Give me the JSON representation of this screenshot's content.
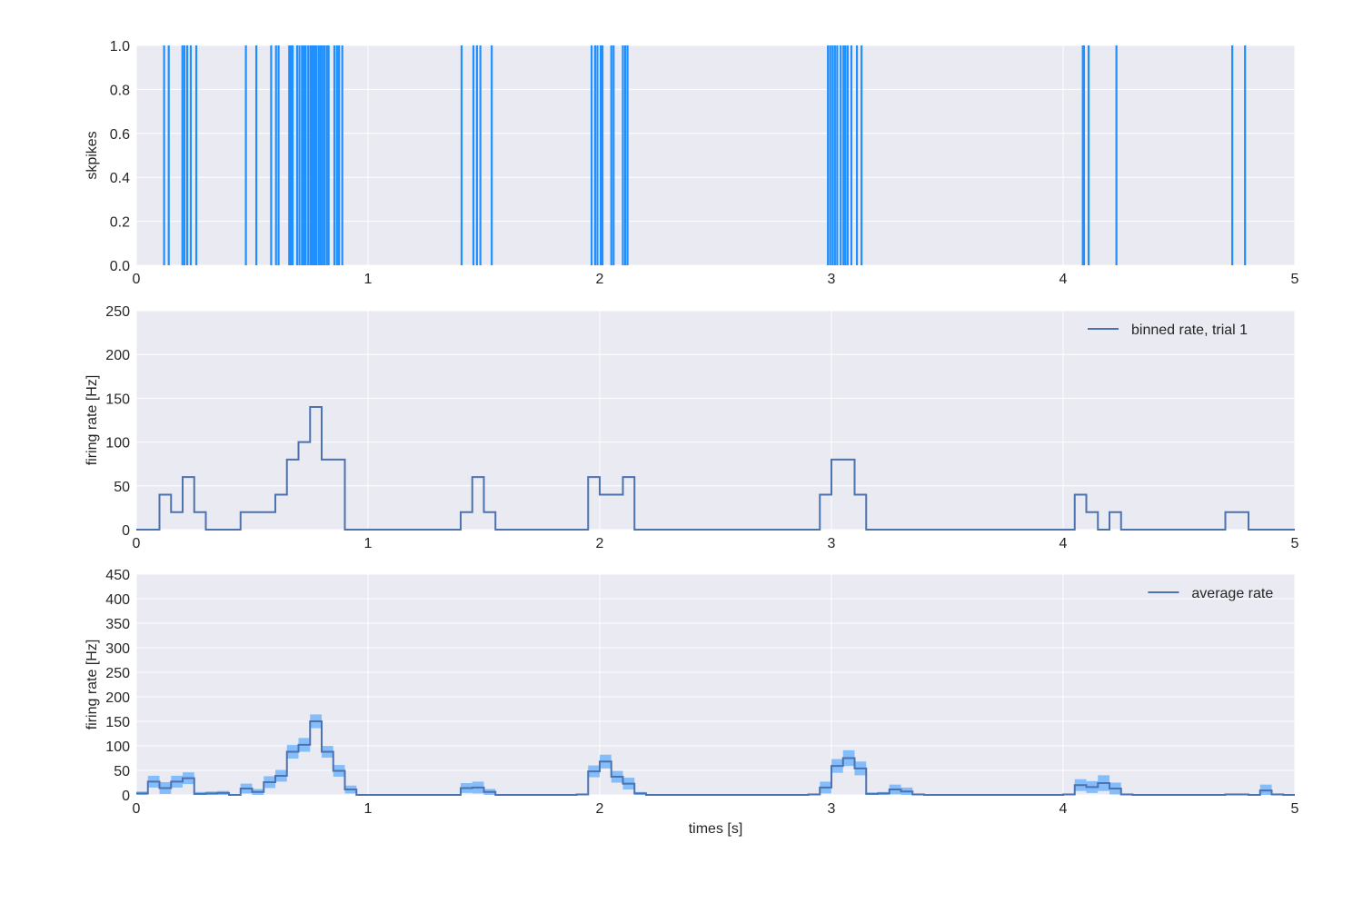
{
  "chart_data": [
    {
      "type": "raster",
      "ylabel": "skpikes",
      "xlim": [
        0,
        5
      ],
      "ylim": [
        0,
        1
      ],
      "xticks": [
        "0",
        "1",
        "2",
        "3",
        "4",
        "5"
      ],
      "yticks": [
        "0.0",
        "0.2",
        "0.4",
        "0.6",
        "0.8",
        "1.0"
      ],
      "grid": true,
      "color": "#1e90ff",
      "spike_times": [
        0.12,
        0.14,
        0.199,
        0.208,
        0.22,
        0.235,
        0.259,
        0.473,
        0.518,
        0.582,
        0.603,
        0.614,
        0.66,
        0.667,
        0.675,
        0.694,
        0.704,
        0.715,
        0.723,
        0.731,
        0.742,
        0.752,
        0.758,
        0.764,
        0.77,
        0.777,
        0.787,
        0.795,
        0.803,
        0.812,
        0.822,
        0.83,
        0.855,
        0.866,
        0.875,
        0.889,
        1.404,
        1.455,
        1.47,
        1.485,
        1.534,
        1.965,
        1.98,
        1.99,
        2.004,
        2.012,
        2.05,
        2.06,
        2.1,
        2.11,
        2.12,
        2.985,
        2.995,
        3.005,
        3.015,
        3.025,
        3.04,
        3.052,
        3.06,
        3.07,
        3.086,
        3.11,
        3.13,
        4.085,
        4.09,
        4.11,
        4.23,
        4.73,
        4.785
      ]
    },
    {
      "type": "step",
      "ylabel": "firing rate [Hz]",
      "xlim": [
        0,
        5
      ],
      "ylim": [
        0,
        250
      ],
      "xticks": [
        "0",
        "1",
        "2",
        "3",
        "4",
        "5"
      ],
      "yticks": [
        "0",
        "50",
        "100",
        "150",
        "200",
        "250"
      ],
      "grid": true,
      "legend": "top-right",
      "color": "#4c72b0",
      "series": [
        {
          "name": "binned rate, trial 1",
          "bin_width": 0.05,
          "values": [
            0,
            0,
            40,
            20,
            60,
            20,
            0,
            0,
            0,
            20,
            20,
            20,
            40,
            80,
            100,
            140,
            80,
            80,
            0,
            0,
            0,
            0,
            0,
            0,
            0,
            0,
            0,
            0,
            20,
            60,
            20,
            0,
            0,
            0,
            0,
            0,
            0,
            0,
            0,
            60,
            40,
            40,
            60,
            0,
            0,
            0,
            0,
            0,
            0,
            0,
            0,
            0,
            0,
            0,
            0,
            0,
            0,
            0,
            0,
            40,
            80,
            80,
            40,
            0,
            0,
            0,
            0,
            0,
            0,
            0,
            0,
            0,
            0,
            0,
            0,
            0,
            0,
            0,
            0,
            0,
            0,
            40,
            20,
            0,
            20,
            0,
            0,
            0,
            0,
            0,
            0,
            0,
            0,
            0,
            20,
            20,
            0,
            0,
            0,
            0
          ]
        }
      ]
    },
    {
      "type": "step",
      "xlabel": "times [s]",
      "ylabel": "firing rate [Hz]",
      "xlim": [
        0,
        5
      ],
      "ylim": [
        0,
        450
      ],
      "xticks": [
        "0",
        "1",
        "2",
        "3",
        "4",
        "5"
      ],
      "yticks": [
        "0",
        "50",
        "100",
        "150",
        "200",
        "250",
        "300",
        "350",
        "400",
        "450"
      ],
      "grid": true,
      "legend": "top-right",
      "color": "#4c72b0",
      "band_color": "#1e90ff",
      "series": [
        {
          "name": "average rate",
          "bin_width": 0.05,
          "values": [
            3,
            27,
            14,
            27,
            34,
            2,
            3,
            4,
            0,
            13,
            6,
            26,
            39,
            88,
            102,
            150,
            88,
            49,
            11,
            0,
            0,
            0,
            0,
            0,
            0,
            0,
            0,
            0,
            14,
            15,
            6,
            0,
            0,
            0,
            0,
            0,
            0,
            0,
            1,
            48,
            68,
            37,
            23,
            3,
            0,
            0,
            0,
            0,
            0,
            0,
            0,
            0,
            0,
            0,
            0,
            0,
            0,
            0,
            1,
            15,
            59,
            75,
            54,
            2,
            3,
            11,
            7,
            1,
            0,
            0,
            0,
            0,
            0,
            0,
            0,
            0,
            0,
            0,
            0,
            0,
            1,
            20,
            16,
            24,
            13,
            1,
            0,
            0,
            0,
            0,
            0,
            0,
            0,
            0,
            1,
            1,
            0,
            9,
            1,
            0
          ],
          "error": [
            4,
            12,
            12,
            12,
            12,
            4,
            4,
            4,
            0,
            10,
            6,
            12,
            12,
            14,
            14,
            14,
            12,
            12,
            8,
            0,
            0,
            0,
            0,
            0,
            0,
            0,
            0,
            0,
            10,
            12,
            6,
            0,
            0,
            0,
            0,
            0,
            0,
            0,
            2,
            12,
            14,
            12,
            12,
            3,
            0,
            0,
            0,
            0,
            0,
            0,
            0,
            0,
            0,
            0,
            0,
            0,
            0,
            0,
            2,
            12,
            14,
            16,
            14,
            3,
            3,
            10,
            8,
            2,
            0,
            0,
            0,
            0,
            0,
            0,
            0,
            0,
            0,
            0,
            0,
            0,
            2,
            12,
            12,
            16,
            12,
            2,
            0,
            0,
            0,
            0,
            0,
            0,
            0,
            0,
            2,
            2,
            0,
            12,
            2,
            0
          ]
        }
      ]
    }
  ]
}
